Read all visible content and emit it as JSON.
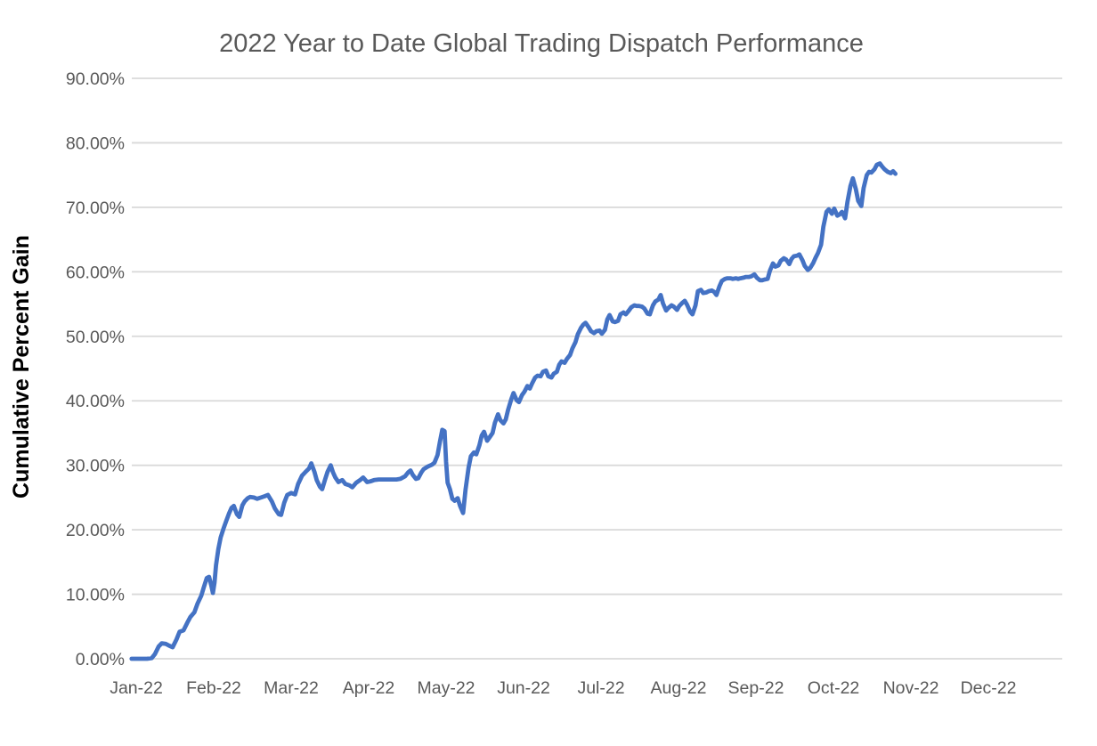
{
  "chart_data": {
    "type": "line",
    "title": "2022 Year to Date Global Trading Dispatch Performance",
    "xlabel": "",
    "ylabel": "Cumulative Percent Gain",
    "legend": false,
    "grid": true,
    "x_axis": {
      "unit": "month",
      "ticks": [
        "Jan-22",
        "Feb-22",
        "Mar-22",
        "Apr-22",
        "May-22",
        "Jun-22",
        "Jul-22",
        "Aug-22",
        "Sep-22",
        "Oct-22",
        "Nov-22",
        "Dec-22"
      ]
    },
    "y_axis": {
      "unit": "percent",
      "min": 0,
      "max": 90,
      "ticks": [
        "0.00%",
        "10.00%",
        "20.00%",
        "30.00%",
        "40.00%",
        "50.00%",
        "60.00%",
        "70.00%",
        "80.00%",
        "90.00%"
      ]
    },
    "colors": {
      "line": "#4472C4",
      "grid": "#D9D9D9",
      "tick_text": "#595959",
      "title_text": "#595959",
      "axis_title_text": "#000000",
      "background": "#FFFFFF"
    },
    "series": [
      {
        "name": "Cumulative Percent Gain",
        "x_unit_note": "x = months since Jan-22 tick (0=Jan-22 ... 11=Dec-22), y = cumulative percent gain",
        "points": [
          [
            -0.06,
            0
          ],
          [
            0.02,
            0
          ],
          [
            0.08,
            0
          ],
          [
            0.14,
            0
          ],
          [
            0.2,
            0.1
          ],
          [
            0.24,
            0.7
          ],
          [
            0.29,
            1.9
          ],
          [
            0.33,
            2.4
          ],
          [
            0.38,
            2.3
          ],
          [
            0.43,
            2.0
          ],
          [
            0.47,
            1.8
          ],
          [
            0.52,
            3.0
          ],
          [
            0.56,
            4.2
          ],
          [
            0.61,
            4.4
          ],
          [
            0.66,
            5.6
          ],
          [
            0.7,
            6.5
          ],
          [
            0.75,
            7.2
          ],
          [
            0.79,
            8.5
          ],
          [
            0.84,
            9.8
          ],
          [
            0.87,
            11.0
          ],
          [
            0.91,
            12.5
          ],
          [
            0.94,
            12.7
          ],
          [
            0.97,
            11.3
          ],
          [
            0.99,
            10.2
          ],
          [
            1.01,
            11.8
          ],
          [
            1.03,
            14.5
          ],
          [
            1.06,
            17.0
          ],
          [
            1.09,
            18.8
          ],
          [
            1.13,
            20.3
          ],
          [
            1.16,
            21.3
          ],
          [
            1.2,
            22.6
          ],
          [
            1.23,
            23.4
          ],
          [
            1.26,
            23.7
          ],
          [
            1.3,
            22.4
          ],
          [
            1.33,
            22.0
          ],
          [
            1.37,
            23.8
          ],
          [
            1.4,
            24.4
          ],
          [
            1.44,
            24.9
          ],
          [
            1.47,
            25.1
          ],
          [
            1.52,
            25.0
          ],
          [
            1.56,
            24.8
          ],
          [
            1.61,
            25.0
          ],
          [
            1.66,
            25.2
          ],
          [
            1.7,
            25.4
          ],
          [
            1.75,
            24.4
          ],
          [
            1.79,
            23.3
          ],
          [
            1.84,
            22.4
          ],
          [
            1.87,
            22.3
          ],
          [
            1.91,
            24.2
          ],
          [
            1.95,
            25.4
          ],
          [
            2.0,
            25.7
          ],
          [
            2.05,
            25.5
          ],
          [
            2.09,
            27.1
          ],
          [
            2.14,
            28.4
          ],
          [
            2.18,
            28.9
          ],
          [
            2.23,
            29.5
          ],
          [
            2.26,
            30.3
          ],
          [
            2.3,
            29.0
          ],
          [
            2.33,
            27.7
          ],
          [
            2.37,
            26.7
          ],
          [
            2.4,
            26.3
          ],
          [
            2.44,
            27.9
          ],
          [
            2.47,
            29.0
          ],
          [
            2.51,
            30.0
          ],
          [
            2.54,
            28.9
          ],
          [
            2.57,
            28.1
          ],
          [
            2.61,
            27.4
          ],
          [
            2.66,
            27.7
          ],
          [
            2.7,
            27.1
          ],
          [
            2.75,
            26.9
          ],
          [
            2.79,
            26.6
          ],
          [
            2.84,
            27.3
          ],
          [
            2.89,
            27.7
          ],
          [
            2.93,
            28.1
          ],
          [
            2.98,
            27.4
          ],
          [
            3.02,
            27.5
          ],
          [
            3.07,
            27.7
          ],
          [
            3.13,
            27.8
          ],
          [
            3.18,
            27.8
          ],
          [
            3.24,
            27.8
          ],
          [
            3.3,
            27.8
          ],
          [
            3.36,
            27.8
          ],
          [
            3.41,
            27.9
          ],
          [
            3.47,
            28.3
          ],
          [
            3.51,
            28.9
          ],
          [
            3.54,
            29.2
          ],
          [
            3.57,
            28.5
          ],
          [
            3.61,
            27.9
          ],
          [
            3.64,
            28.0
          ],
          [
            3.68,
            28.9
          ],
          [
            3.71,
            29.4
          ],
          [
            3.75,
            29.7
          ],
          [
            3.78,
            29.9
          ],
          [
            3.82,
            30.1
          ],
          [
            3.85,
            30.4
          ],
          [
            3.89,
            31.6
          ],
          [
            3.92,
            33.6
          ],
          [
            3.95,
            35.5
          ],
          [
            3.98,
            35.3
          ],
          [
            4.0,
            30.5
          ],
          [
            4.02,
            27.3
          ],
          [
            4.05,
            26.3
          ],
          [
            4.08,
            24.8
          ],
          [
            4.11,
            24.5
          ],
          [
            4.15,
            24.9
          ],
          [
            4.18,
            23.7
          ],
          [
            4.22,
            22.6
          ],
          [
            4.25,
            26.2
          ],
          [
            4.29,
            29.6
          ],
          [
            4.32,
            31.4
          ],
          [
            4.36,
            32.0
          ],
          [
            4.39,
            31.7
          ],
          [
            4.43,
            33.1
          ],
          [
            4.46,
            34.6
          ],
          [
            4.49,
            35.2
          ],
          [
            4.53,
            33.8
          ],
          [
            4.56,
            34.3
          ],
          [
            4.6,
            35.0
          ],
          [
            4.63,
            36.6
          ],
          [
            4.67,
            37.9
          ],
          [
            4.7,
            37.0
          ],
          [
            4.74,
            36.5
          ],
          [
            4.77,
            37.1
          ],
          [
            4.8,
            38.6
          ],
          [
            4.84,
            40.2
          ],
          [
            4.87,
            41.2
          ],
          [
            4.91,
            40.1
          ],
          [
            4.94,
            39.8
          ],
          [
            4.98,
            40.9
          ],
          [
            5.01,
            41.4
          ],
          [
            5.05,
            42.3
          ],
          [
            5.08,
            41.9
          ],
          [
            5.11,
            42.7
          ],
          [
            5.15,
            43.6
          ],
          [
            5.18,
            43.9
          ],
          [
            5.22,
            43.8
          ],
          [
            5.25,
            44.5
          ],
          [
            5.29,
            44.7
          ],
          [
            5.32,
            43.8
          ],
          [
            5.36,
            43.6
          ],
          [
            5.39,
            44.2
          ],
          [
            5.43,
            44.5
          ],
          [
            5.46,
            45.6
          ],
          [
            5.49,
            46.1
          ],
          [
            5.53,
            45.9
          ],
          [
            5.56,
            46.5
          ],
          [
            5.6,
            47.1
          ],
          [
            5.63,
            48.1
          ],
          [
            5.67,
            49.1
          ],
          [
            5.7,
            50.3
          ],
          [
            5.74,
            51.3
          ],
          [
            5.77,
            51.8
          ],
          [
            5.8,
            52.1
          ],
          [
            5.84,
            51.4
          ],
          [
            5.87,
            50.8
          ],
          [
            5.91,
            50.5
          ],
          [
            5.94,
            50.8
          ],
          [
            5.98,
            50.9
          ],
          [
            6.01,
            50.4
          ],
          [
            6.05,
            51.0
          ],
          [
            6.08,
            52.6
          ],
          [
            6.11,
            53.3
          ],
          [
            6.15,
            52.3
          ],
          [
            6.18,
            52.2
          ],
          [
            6.22,
            52.4
          ],
          [
            6.25,
            53.4
          ],
          [
            6.29,
            53.7
          ],
          [
            6.32,
            53.4
          ],
          [
            6.36,
            54.0
          ],
          [
            6.39,
            54.5
          ],
          [
            6.43,
            54.8
          ],
          [
            6.46,
            54.7
          ],
          [
            6.49,
            54.7
          ],
          [
            6.53,
            54.6
          ],
          [
            6.56,
            54.3
          ],
          [
            6.6,
            53.5
          ],
          [
            6.63,
            53.4
          ],
          [
            6.67,
            54.8
          ],
          [
            6.7,
            55.4
          ],
          [
            6.74,
            55.7
          ],
          [
            6.77,
            56.4
          ],
          [
            6.8,
            55.1
          ],
          [
            6.84,
            54.0
          ],
          [
            6.87,
            54.4
          ],
          [
            6.91,
            54.8
          ],
          [
            6.94,
            54.6
          ],
          [
            6.98,
            54.1
          ],
          [
            7.01,
            54.7
          ],
          [
            7.05,
            55.2
          ],
          [
            7.08,
            55.5
          ],
          [
            7.11,
            54.9
          ],
          [
            7.15,
            53.8
          ],
          [
            7.18,
            53.4
          ],
          [
            7.22,
            54.8
          ],
          [
            7.25,
            57.0
          ],
          [
            7.29,
            57.2
          ],
          [
            7.32,
            56.7
          ],
          [
            7.36,
            56.8
          ],
          [
            7.39,
            57.0
          ],
          [
            7.43,
            57.1
          ],
          [
            7.46,
            56.9
          ],
          [
            7.49,
            56.4
          ],
          [
            7.53,
            57.8
          ],
          [
            7.56,
            58.6
          ],
          [
            7.6,
            58.9
          ],
          [
            7.63,
            59.0
          ],
          [
            7.67,
            59.0
          ],
          [
            7.7,
            58.9
          ],
          [
            7.74,
            59.0
          ],
          [
            7.77,
            58.9
          ],
          [
            7.8,
            59.0
          ],
          [
            7.84,
            59.1
          ],
          [
            7.87,
            59.2
          ],
          [
            7.91,
            59.2
          ],
          [
            7.94,
            59.3
          ],
          [
            7.98,
            59.6
          ],
          [
            8.01,
            59.1
          ],
          [
            8.05,
            58.7
          ],
          [
            8.08,
            58.7
          ],
          [
            8.11,
            58.8
          ],
          [
            8.15,
            58.9
          ],
          [
            8.18,
            60.2
          ],
          [
            8.22,
            61.3
          ],
          [
            8.25,
            60.8
          ],
          [
            8.29,
            61.0
          ],
          [
            8.32,
            61.7
          ],
          [
            8.36,
            62.1
          ],
          [
            8.39,
            61.9
          ],
          [
            8.43,
            61.2
          ],
          [
            8.46,
            62.0
          ],
          [
            8.49,
            62.4
          ],
          [
            8.53,
            62.5
          ],
          [
            8.56,
            62.7
          ],
          [
            8.6,
            61.8
          ],
          [
            8.63,
            60.9
          ],
          [
            8.67,
            60.3
          ],
          [
            8.7,
            60.6
          ],
          [
            8.74,
            61.4
          ],
          [
            8.77,
            62.2
          ],
          [
            8.8,
            62.9
          ],
          [
            8.84,
            64.2
          ],
          [
            8.87,
            67.0
          ],
          [
            8.91,
            69.3
          ],
          [
            8.94,
            69.7
          ],
          [
            8.98,
            69.0
          ],
          [
            9.01,
            69.8
          ],
          [
            9.05,
            68.7
          ],
          [
            9.08,
            68.9
          ],
          [
            9.11,
            69.3
          ],
          [
            9.15,
            68.3
          ],
          [
            9.18,
            70.8
          ],
          [
            9.22,
            73.3
          ],
          [
            9.25,
            74.5
          ],
          [
            9.29,
            72.8
          ],
          [
            9.32,
            71.0
          ],
          [
            9.36,
            70.2
          ],
          [
            9.39,
            73.0
          ],
          [
            9.43,
            75.0
          ],
          [
            9.46,
            75.5
          ],
          [
            9.49,
            75.4
          ],
          [
            9.53,
            75.9
          ],
          [
            9.56,
            76.6
          ],
          [
            9.6,
            76.8
          ],
          [
            9.63,
            76.3
          ],
          [
            9.66,
            75.9
          ],
          [
            9.7,
            75.5
          ],
          [
            9.74,
            75.3
          ],
          [
            9.77,
            75.6
          ],
          [
            9.8,
            75.2
          ]
        ]
      }
    ]
  }
}
